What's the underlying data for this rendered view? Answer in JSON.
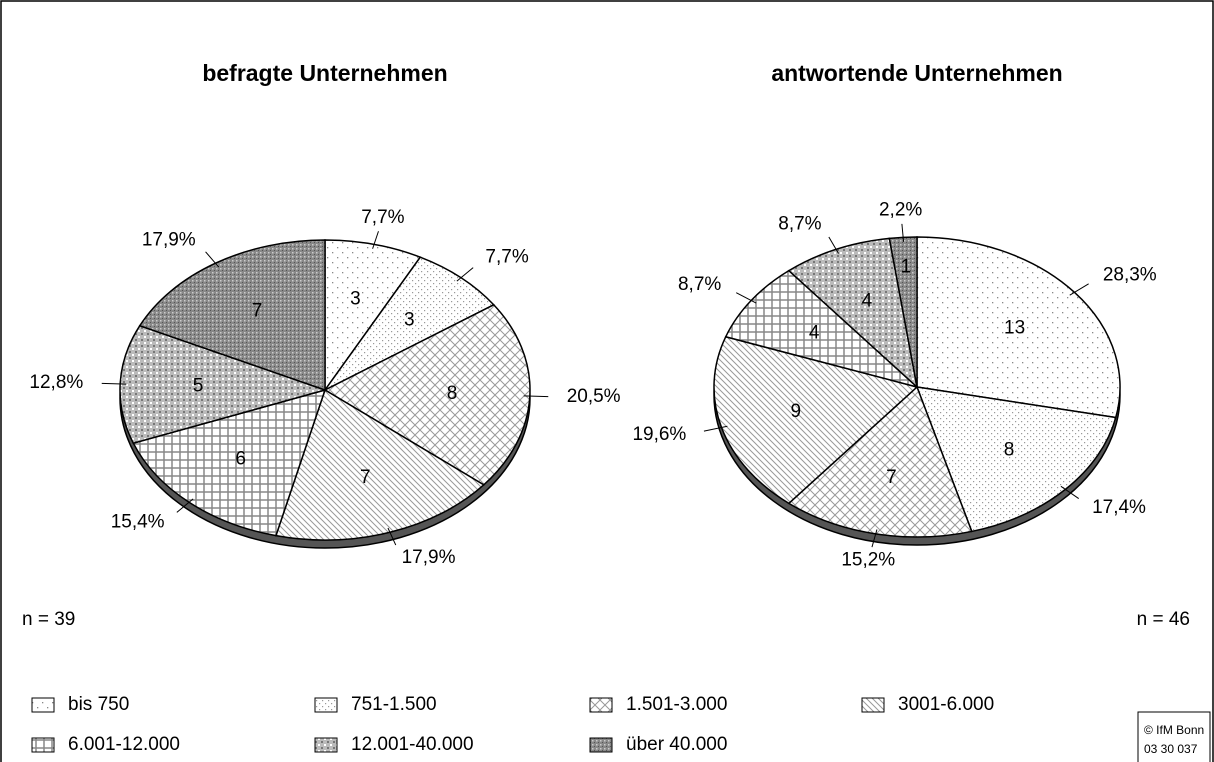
{
  "legend": [
    "bis 750",
    "751-1.500",
    "1.501-3.000",
    "3001-6.000",
    "6.001-12.000",
    "12.001-40.000",
    "über 40.000"
  ],
  "chart_data": [
    {
      "type": "pie",
      "title": "befragte Unternehmen",
      "n_label": "n = 39",
      "values": [
        3,
        3,
        8,
        7,
        6,
        5,
        7
      ],
      "shares": [
        7.7,
        7.7,
        20.5,
        17.9,
        15.4,
        12.8,
        17.9
      ],
      "share_labels": [
        "7,7%",
        "7,7%",
        "20,5%",
        "17,9%",
        "15,4%",
        "12,8%",
        "17,9%"
      ]
    },
    {
      "type": "pie",
      "title": "antwortende Unternehmen",
      "n_label": "n = 46",
      "values": [
        13,
        8,
        7,
        9,
        4,
        4,
        1
      ],
      "shares": [
        28.3,
        17.4,
        15.2,
        19.6,
        8.7,
        8.7,
        2.2
      ],
      "share_labels": [
        "28,3%",
        "17,4%",
        "15,2%",
        "19,6%",
        "8,7%",
        "8,7%",
        "2,2%"
      ]
    }
  ],
  "footer": {
    "line1": "© IfM Bonn",
    "line2": "03 30 037"
  }
}
